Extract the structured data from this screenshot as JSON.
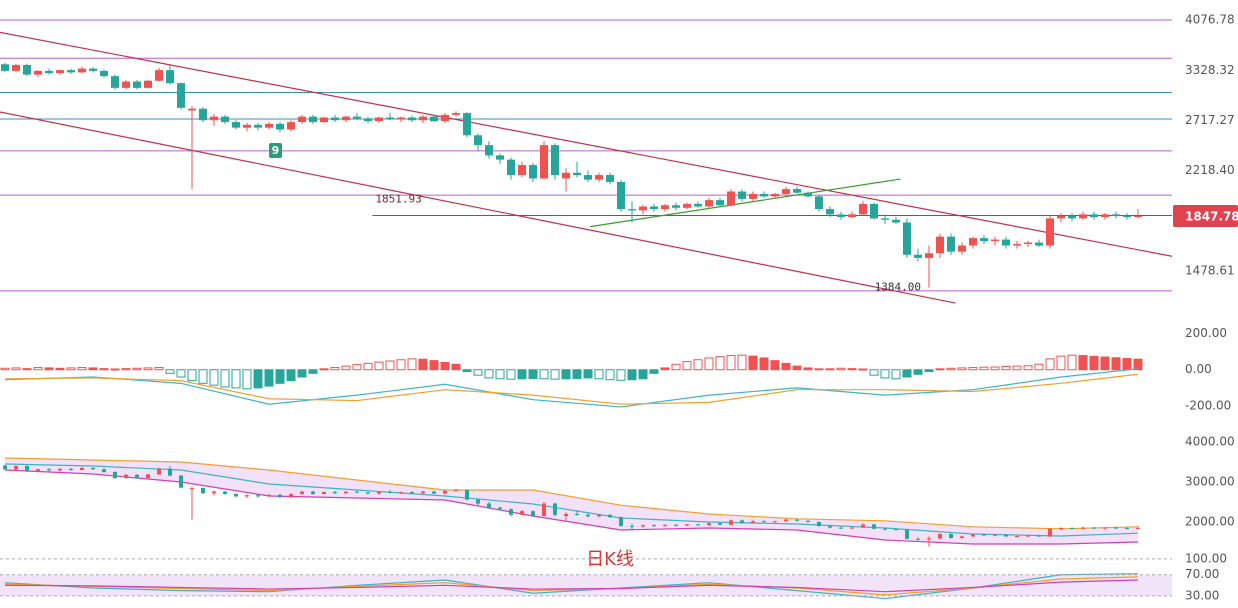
{
  "watermark": "日K线",
  "chart_data": [
    {
      "type": "candlestick",
      "log_scale": true,
      "ylim": [
        1290,
        4420
      ],
      "yticks": [
        4076.78,
        3328.32,
        2717.27,
        {
          "value": 2218.4,
          "label": "2218.40"
        },
        1478.61
      ],
      "up_color": "#ef5350",
      "down_color": "#26a69a",
      "candles": [
        [
          3410,
          3430,
          3300,
          3320
        ],
        [
          3320,
          3420,
          3300,
          3400
        ],
        [
          3400,
          3420,
          3250,
          3270
        ],
        [
          3270,
          3330,
          3240,
          3320
        ],
        [
          3320,
          3350,
          3270,
          3290
        ],
        [
          3290,
          3340,
          3270,
          3330
        ],
        [
          3330,
          3350,
          3280,
          3300
        ],
        [
          3300,
          3380,
          3290,
          3350
        ],
        [
          3350,
          3370,
          3300,
          3320
        ],
        [
          3320,
          3340,
          3230,
          3250
        ],
        [
          3250,
          3270,
          3080,
          3100
        ],
        [
          3100,
          3200,
          3080,
          3180
        ],
        [
          3180,
          3200,
          3080,
          3100
        ],
        [
          3100,
          3200,
          3090,
          3190
        ],
        [
          3190,
          3360,
          3180,
          3330
        ],
        [
          3330,
          3400,
          3140,
          3160
        ],
        [
          3160,
          3170,
          2840,
          2860
        ],
        [
          2830,
          2880,
          2060,
          2850
        ],
        [
          2850,
          2870,
          2700,
          2720
        ],
        [
          2720,
          2790,
          2660,
          2760
        ],
        [
          2760,
          2780,
          2680,
          2700
        ],
        [
          2700,
          2720,
          2620,
          2640
        ],
        [
          2640,
          2690,
          2600,
          2670
        ],
        [
          2670,
          2690,
          2610,
          2640
        ],
        [
          2640,
          2700,
          2620,
          2680
        ],
        [
          2680,
          2700,
          2590,
          2620
        ],
        [
          2620,
          2720,
          2600,
          2700
        ],
        [
          2700,
          2780,
          2680,
          2760
        ],
        [
          2760,
          2780,
          2680,
          2700
        ],
        [
          2700,
          2760,
          2690,
          2750
        ],
        [
          2750,
          2780,
          2700,
          2720
        ],
        [
          2720,
          2770,
          2700,
          2760
        ],
        [
          2760,
          2800,
          2720,
          2740
        ],
        [
          2740,
          2760,
          2690,
          2710
        ],
        [
          2710,
          2760,
          2690,
          2750
        ],
        [
          2750,
          2800,
          2720,
          2730
        ],
        [
          2730,
          2760,
          2700,
          2750
        ],
        [
          2750,
          2770,
          2700,
          2720
        ],
        [
          2720,
          2780,
          2690,
          2760
        ],
        [
          2760,
          2780,
          2700,
          2710
        ],
        [
          2710,
          2800,
          2690,
          2780
        ],
        [
          2780,
          2820,
          2760,
          2800
        ],
        [
          2800,
          2810,
          2540,
          2560
        ],
        [
          2560,
          2580,
          2400,
          2460
        ],
        [
          2460,
          2500,
          2330,
          2360
        ],
        [
          2360,
          2380,
          2280,
          2320
        ],
        [
          2320,
          2340,
          2140,
          2180
        ],
        [
          2180,
          2300,
          2160,
          2270
        ],
        [
          2270,
          2290,
          2120,
          2150
        ],
        [
          2150,
          2500,
          2140,
          2460
        ],
        [
          2460,
          2480,
          2140,
          2180
        ],
        [
          2150,
          2240,
          2040,
          2200
        ],
        [
          2200,
          2300,
          2160,
          2180
        ],
        [
          2180,
          2220,
          2120,
          2140
        ],
        [
          2140,
          2200,
          2120,
          2180
        ],
        [
          2180,
          2200,
          2100,
          2120
        ],
        [
          2120,
          2140,
          1880,
          1900
        ],
        [
          1900,
          1960,
          1800,
          1890
        ],
        [
          1890,
          1930,
          1860,
          1920
        ],
        [
          1920,
          1940,
          1880,
          1900
        ],
        [
          1900,
          1940,
          1880,
          1930
        ],
        [
          1930,
          1950,
          1890,
          1910
        ],
        [
          1910,
          1950,
          1900,
          1940
        ],
        [
          1940,
          1960,
          1910,
          1920
        ],
        [
          1920,
          1990,
          1910,
          1970
        ],
        [
          1970,
          1990,
          1920,
          1930
        ],
        [
          1930,
          2060,
          1920,
          2040
        ],
        [
          2040,
          2060,
          1960,
          1980
        ],
        [
          1980,
          2040,
          1960,
          2020
        ],
        [
          2020,
          2040,
          1990,
          2000
        ],
        [
          2000,
          2030,
          1980,
          2020
        ],
        [
          2020,
          2080,
          2000,
          2060
        ],
        [
          2060,
          2080,
          2020,
          2030
        ],
        [
          2030,
          2040,
          1990,
          2000
        ],
        [
          2000,
          2010,
          1880,
          1900
        ],
        [
          1900,
          1920,
          1840,
          1860
        ],
        [
          1860,
          1880,
          1820,
          1840
        ],
        [
          1840,
          1880,
          1830,
          1860
        ],
        [
          1860,
          1960,
          1850,
          1940
        ],
        [
          1940,
          1950,
          1820,
          1830
        ],
        [
          1830,
          1860,
          1790,
          1820
        ],
        [
          1820,
          1840,
          1790,
          1800
        ],
        [
          1800,
          1830,
          1560,
          1580
        ],
        [
          1580,
          1620,
          1540,
          1560
        ],
        [
          1560,
          1640,
          1384,
          1590
        ],
        [
          1590,
          1720,
          1560,
          1700
        ],
        [
          1700,
          1720,
          1580,
          1600
        ],
        [
          1600,
          1660,
          1580,
          1640
        ],
        [
          1640,
          1700,
          1620,
          1690
        ],
        [
          1690,
          1710,
          1650,
          1670
        ],
        [
          1670,
          1700,
          1640,
          1680
        ],
        [
          1680,
          1700,
          1620,
          1640
        ],
        [
          1640,
          1670,
          1620,
          1650
        ],
        [
          1650,
          1670,
          1630,
          1660
        ],
        [
          1660,
          1680,
          1630,
          1640
        ],
        [
          1640,
          1850,
          1620,
          1830
        ],
        [
          1830,
          1870,
          1800,
          1850
        ],
        [
          1850,
          1870,
          1810,
          1830
        ],
        [
          1830,
          1880,
          1820,
          1860
        ],
        [
          1860,
          1880,
          1820,
          1840
        ],
        [
          1840,
          1870,
          1820,
          1860
        ],
        [
          1860,
          1880,
          1830,
          1850
        ],
        [
          1850,
          1870,
          1820,
          1840
        ],
        [
          1840,
          1900,
          1830,
          1847.78
        ]
      ],
      "hlines": [
        {
          "value": 4076.78,
          "color": "#b65fcf"
        },
        {
          "value": 3493,
          "color": "#b65fcf"
        },
        {
          "value": 3042,
          "color": "#3f8fb5"
        },
        {
          "value": 2734,
          "color": "#3f8fb5"
        },
        {
          "value": 2404,
          "color": "#b65fcf"
        },
        {
          "value": 2010,
          "color": "#b65fcf"
        },
        {
          "value": 1366,
          "color": "#b65fcf"
        }
      ],
      "ray": {
        "value": 1851.93,
        "start": 33.4,
        "color": "#c0392b"
      },
      "trendlines": [
        {
          "color": "#c2304a",
          "points": [
            [
              -0.5,
              3880
            ],
            [
              106.5,
              1565
            ]
          ]
        },
        {
          "color": "#c2304a",
          "points": [
            [
              -0.5,
              2813
            ],
            [
              86.4,
              1300
            ]
          ]
        },
        {
          "color": "#3c9a2e",
          "points": [
            [
              53.2,
              1770
            ],
            [
              81.4,
              2145
            ]
          ]
        }
      ],
      "low_annotation": {
        "value": 1384,
        "label": "1384.00"
      },
      "td_count": 9
    },
    {
      "type": "macd",
      "ylim": [
        -277,
        263
      ],
      "yticks": [
        {
          "value": 200,
          "label": "200.00"
        },
        {
          "value": 0,
          "label": "0.00"
        },
        {
          "value": -200,
          "label": "-200.00"
        }
      ],
      "histogram": [
        8,
        10,
        6,
        12,
        10,
        8,
        10,
        12,
        10,
        6,
        4,
        6,
        8,
        10,
        12,
        -20,
        -40,
        -60,
        -75,
        -85,
        -95,
        -100,
        -105,
        -100,
        -90,
        -75,
        -60,
        -40,
        -20,
        5,
        12,
        20,
        28,
        35,
        42,
        48,
        55,
        60,
        58,
        50,
        40,
        30,
        -10,
        -30,
        -45,
        -50,
        -52,
        -50,
        -48,
        -50,
        -52,
        -50,
        -48,
        -45,
        -50,
        -55,
        -58,
        -55,
        -50,
        -20,
        10,
        30,
        45,
        55,
        65,
        72,
        78,
        80,
        75,
        65,
        50,
        35,
        20,
        10,
        5,
        5,
        8,
        6,
        4,
        -30,
        -45,
        -50,
        -40,
        -25,
        -10,
        5,
        8,
        10,
        12,
        14,
        15,
        18,
        20,
        22,
        30,
        60,
        75,
        80,
        78,
        74,
        70,
        66,
        62,
        58
      ],
      "up_color": "#ef5350",
      "down_color": "#26a69a",
      "x": [
        0,
        8,
        16,
        24,
        32,
        40,
        48,
        56,
        64,
        72,
        80,
        88,
        96,
        103
      ],
      "series": [
        {
          "color": "#3fb3c4",
          "values": [
            -55,
            -40,
            -75,
            -190,
            -140,
            -80,
            -165,
            -205,
            -140,
            -100,
            -140,
            -110,
            -40,
            5
          ]
        },
        {
          "color": "#f0a030",
          "values": [
            -50,
            -45,
            -60,
            -160,
            -170,
            -110,
            -140,
            -190,
            -180,
            -110,
            -110,
            -120,
            -75,
            -25
          ]
        }
      ]
    },
    {
      "type": "bollinger",
      "ylim": [
        1350,
        4250
      ],
      "yticks": [
        {
          "value": 4000,
          "label": "4000.00"
        },
        {
          "value": 3000,
          "label": "3000.00"
        },
        {
          "value": 2000,
          "label": "2000.00"
        }
      ],
      "x": [
        0,
        8,
        16,
        24,
        32,
        40,
        48,
        56,
        64,
        72,
        80,
        88,
        96,
        103
      ],
      "upper": {
        "color": "#f0a030",
        "values": [
          3600,
          3550,
          3500,
          3300,
          3050,
          2800,
          2800,
          2420,
          2200,
          2080,
          2030,
          1880,
          1830,
          1880
        ]
      },
      "middle": {
        "color": "#3fb3c4",
        "values": [
          3450,
          3400,
          3300,
          2950,
          2800,
          2650,
          2450,
          2100,
          2000,
          1950,
          1850,
          1700,
          1650,
          1720
        ]
      },
      "lower": {
        "color": "#d03fb5",
        "values": [
          3300,
          3200,
          3000,
          2650,
          2600,
          2550,
          2150,
          1800,
          1850,
          1800,
          1550,
          1450,
          1450,
          1500
        ]
      },
      "band_color": "#e9cdf5"
    },
    {
      "type": "rsi",
      "ylim": [
        11,
        111
      ],
      "grid": "dotted",
      "yticks": [
        {
          "value": 100,
          "label": "100.00"
        },
        {
          "value": 70,
          "label": "70.00"
        },
        {
          "value": 30,
          "label": "30.00"
        }
      ],
      "x": [
        0,
        8,
        16,
        24,
        32,
        40,
        48,
        56,
        64,
        72,
        80,
        88,
        96,
        103
      ],
      "series": [
        {
          "color": "#3fb3c4",
          "values": [
            55,
            45,
            40,
            38,
            50,
            60,
            35,
            45,
            55,
            40,
            25,
            45,
            70,
            72
          ]
        },
        {
          "color": "#f0a030",
          "values": [
            52,
            48,
            44,
            40,
            48,
            55,
            40,
            44,
            52,
            45,
            32,
            45,
            62,
            66
          ]
        },
        {
          "color": "#d03fb5",
          "values": [
            50,
            49,
            46,
            43,
            46,
            50,
            43,
            44,
            50,
            46,
            38,
            46,
            56,
            60
          ]
        }
      ],
      "band_color": "#f1e4f8"
    }
  ]
}
